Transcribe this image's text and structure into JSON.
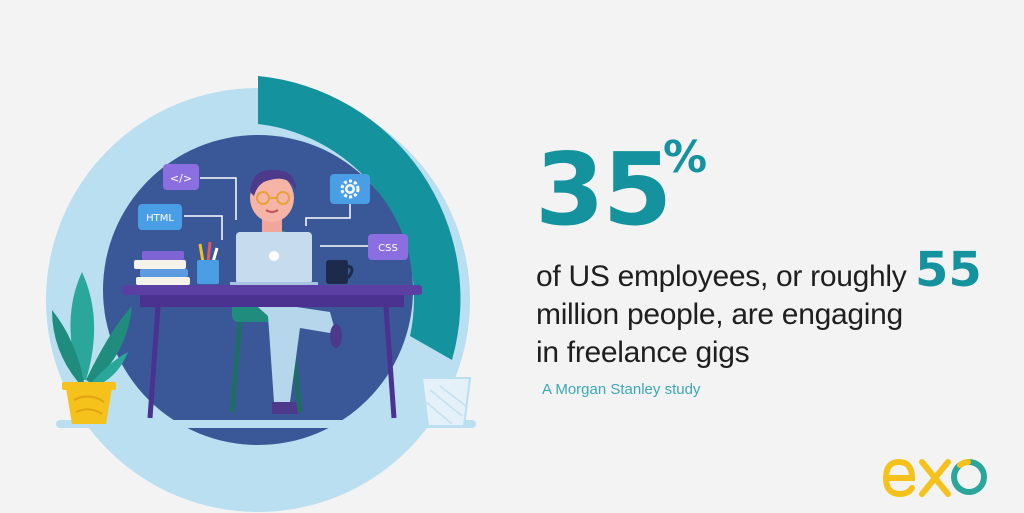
{
  "stat": {
    "big_number": "35",
    "percent_sign": "%",
    "statement_lines": [
      "of US employees, or roughly",
      "million people, are engaging",
      "in freelance gigs"
    ],
    "highlight_number": "55",
    "source": "A Morgan Stanley study",
    "percentage_value": 35
  },
  "illustration": {
    "tags": {
      "code": "</>",
      "html": "HTML",
      "css": "CSS"
    }
  },
  "colors": {
    "accent": "#14939f",
    "ring_light": "#b9dff0",
    "circle_dark": "#3a5897",
    "logo_yellow": "#f4c21b",
    "text_dark": "#1f1f1f"
  }
}
